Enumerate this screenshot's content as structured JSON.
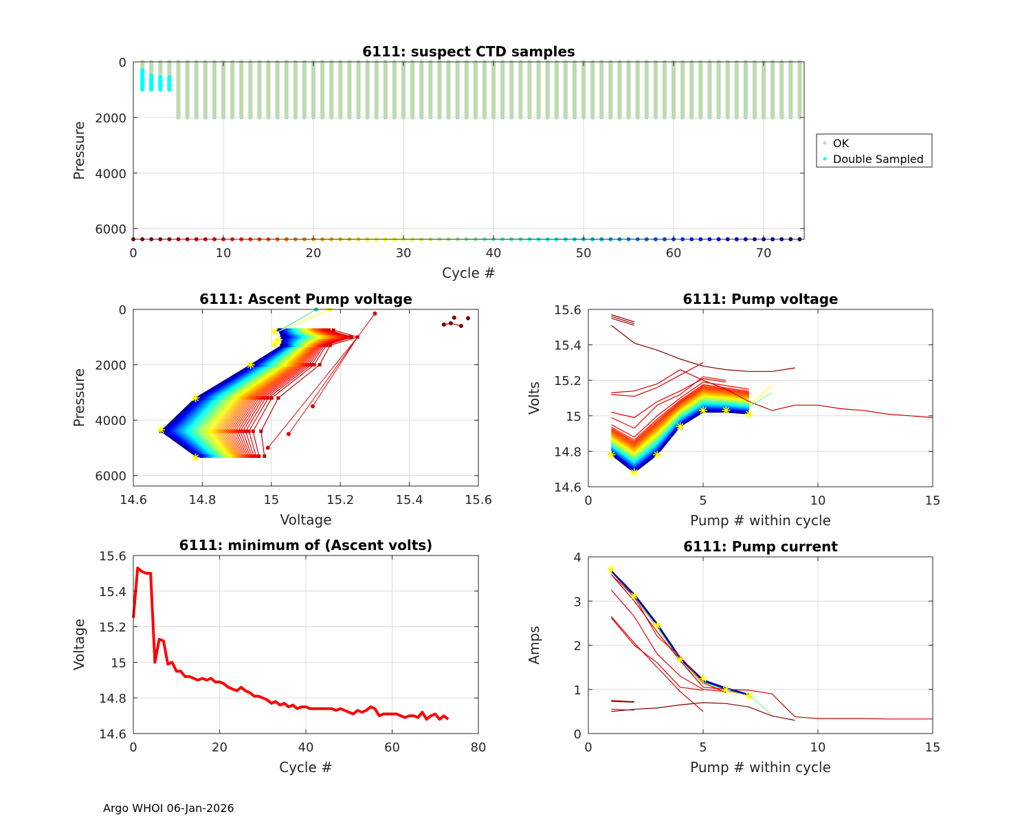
{
  "footer": "Argo WHOI 06-Jan-2026",
  "chart_data": [
    {
      "id": "suspect",
      "type": "scatter",
      "title": "6111: suspect CTD samples",
      "xlabel": "Cycle #",
      "ylabel": "Pressure",
      "xlim": [
        0,
        74.5
      ],
      "ylim": [
        6380,
        0
      ],
      "xticks": [
        0,
        10,
        20,
        30,
        40,
        50,
        60,
        70
      ],
      "yticks": [
        0,
        2000,
        4000,
        6000
      ],
      "grid": true,
      "legend": {
        "placement": "outside-right",
        "entries": [
          {
            "label": "OK",
            "color": "#bcdbb0"
          },
          {
            "label": "Double Sampled",
            "color": "#00ffff"
          }
        ]
      },
      "ok_profiles": {
        "cycles_first": 1,
        "cycles_last": 74,
        "early_cycles": [
          1,
          2,
          3,
          4
        ],
        "early_max_pressure": 1000,
        "max_pressure": 2000
      },
      "double_sampled": [
        {
          "cycle": 1,
          "pmin": 300,
          "pmax": 1000
        },
        {
          "cycle": 2,
          "pmin": 500,
          "pmax": 1000
        },
        {
          "cycle": 3,
          "pmin": 550,
          "pmax": 1000
        },
        {
          "cycle": 4,
          "pmin": 550,
          "pmax": 1000
        }
      ],
      "cycle_markers": {
        "first": 0,
        "last": 74,
        "pressure": 6380
      }
    },
    {
      "id": "ascent",
      "type": "line",
      "title": "6111: Ascent Pump voltage",
      "xlabel": "Voltage",
      "ylabel": "Pressure",
      "xlim": [
        14.6,
        15.6
      ],
      "ylim": [
        6380,
        0
      ],
      "xticks": [
        14.6,
        14.8,
        15.0,
        15.2,
        15.4,
        15.6
      ],
      "xticklabels": [
        "14.6",
        "14.8",
        "15",
        "15.2",
        "15.4",
        "15.6"
      ],
      "yticks": [
        0,
        2000,
        4000,
        6000
      ],
      "grid": true,
      "pressures": [
        750,
        1000,
        1300,
        2000,
        3200,
        4400,
        5300
      ],
      "late_profile_volts": [
        15.02,
        15.03,
        15.03,
        14.94,
        14.78,
        14.68,
        14.78
      ],
      "early_profile_volts": [
        15.18,
        15.25,
        15.17,
        15.14,
        15.02,
        14.97,
        14.98
      ],
      "cycles": [
        5,
        73
      ],
      "outliers": [
        {
          "volts": 15.3,
          "pressure": 150
        },
        {
          "volts": 15.17,
          "pressure": 0
        },
        {
          "volts": 15.13,
          "pressure": 0
        },
        {
          "volts": 15.12,
          "pressure": 3500
        },
        {
          "volts": 15.05,
          "pressure": 4500
        },
        {
          "volts": 14.99,
          "pressure": 5000
        }
      ],
      "first_cycles_points": [
        {
          "volts": 15.5,
          "pressure": 550
        },
        {
          "volts": 15.52,
          "pressure": 500
        },
        {
          "volts": 15.55,
          "pressure": 600
        },
        {
          "volts": 15.53,
          "pressure": 300
        },
        {
          "volts": 15.57,
          "pressure": 320
        }
      ],
      "latest_markers": [
        {
          "volts": 15.01,
          "pressure": 800
        },
        {
          "volts": 15.02,
          "pressure": 1100
        },
        {
          "volts": 15.01,
          "pressure": 1250
        },
        {
          "volts": 14.94,
          "pressure": 2000
        },
        {
          "volts": 14.78,
          "pressure": 3200
        },
        {
          "volts": 14.68,
          "pressure": 4350
        },
        {
          "volts": 14.78,
          "pressure": 5350
        }
      ]
    },
    {
      "id": "pumpv",
      "type": "line",
      "title": "6111: Pump voltage",
      "xlabel": "Pump # within cycle",
      "ylabel": "Volts",
      "xlim": [
        0,
        15
      ],
      "ylim": [
        14.6,
        15.6
      ],
      "xticks": [
        0,
        5,
        10,
        15
      ],
      "yticks": [
        14.6,
        14.8,
        15.0,
        15.2,
        15.4,
        15.6
      ],
      "yticklabels": [
        "14.6",
        "14.8",
        "15",
        "15.2",
        "15.4",
        "15.6"
      ],
      "grid": true,
      "pumps": [
        1,
        2,
        3,
        4,
        5,
        6,
        7
      ],
      "late_profile": [
        14.78,
        14.68,
        14.78,
        14.94,
        15.02,
        15.02,
        15.01
      ],
      "early_profile": [
        14.95,
        14.88,
        15.0,
        15.1,
        15.19,
        15.17,
        15.15
      ],
      "cycles": [
        10,
        73
      ],
      "outlier_lines": [
        {
          "cycle": 0,
          "x": [
            1,
            2,
            3,
            4,
            5,
            6,
            7,
            8,
            9
          ],
          "y": [
            15.51,
            15.41,
            15.37,
            15.32,
            15.28,
            15.26,
            15.25,
            15.25,
            15.27
          ]
        },
        {
          "cycle": 1,
          "x": [
            1,
            2
          ],
          "y": [
            15.57,
            15.53
          ]
        },
        {
          "cycle": 2,
          "x": [
            1,
            2
          ],
          "y": [
            15.56,
            15.52
          ]
        },
        {
          "cycle": 3,
          "x": [
            1,
            2
          ],
          "y": [
            15.55,
            15.51
          ]
        },
        {
          "cycle": 5,
          "x": [
            1,
            2,
            3,
            4,
            5,
            6,
            7,
            8,
            9,
            10,
            11,
            12,
            13,
            14,
            15
          ],
          "y": [
            15.13,
            15.14,
            15.18,
            15.26,
            15.2,
            15.15,
            15.08,
            15.03,
            15.06,
            15.06,
            15.04,
            15.03,
            15.01,
            15.0,
            14.99
          ]
        },
        {
          "cycle": 6,
          "x": [
            1,
            2,
            3,
            4,
            5
          ],
          "y": [
            15.12,
            15.11,
            15.16,
            15.23,
            15.3
          ]
        },
        {
          "cycle": 7,
          "x": [
            1,
            2,
            3,
            4,
            5,
            6
          ],
          "y": [
            15.02,
            14.99,
            15.08,
            15.14,
            15.21,
            15.19
          ]
        },
        {
          "cycle": 8,
          "x": [
            1,
            2,
            3,
            4,
            5,
            6
          ],
          "y": [
            14.99,
            14.93,
            15.06,
            15.12,
            15.22,
            15.2
          ]
        },
        {
          "cycle": 28,
          "x": [
            7,
            8
          ],
          "y": [
            15.06,
            15.17
          ]
        },
        {
          "cycle": 38,
          "x": [
            7,
            8
          ],
          "y": [
            15.05,
            15.13
          ]
        }
      ],
      "latest_markers": {
        "x": [
          1,
          2,
          3,
          4,
          5,
          6,
          7
        ],
        "y": [
          14.78,
          14.68,
          14.78,
          14.94,
          15.03,
          15.03,
          15.01
        ]
      }
    },
    {
      "id": "minv",
      "type": "line",
      "title": "6111: minimum of (Ascent volts)",
      "xlabel": "Cycle #",
      "ylabel": "Voltage",
      "xlim": [
        0,
        80
      ],
      "ylim": [
        14.6,
        15.6
      ],
      "xticks": [
        0,
        20,
        40,
        60,
        80
      ],
      "yticks": [
        14.6,
        14.8,
        15.0,
        15.2,
        15.4,
        15.6
      ],
      "yticklabels": [
        "14.6",
        "14.8",
        "15",
        "15.2",
        "15.4",
        "15.6"
      ],
      "grid": true,
      "color": "#ff0000",
      "x": [
        0,
        1,
        2,
        3,
        4,
        5,
        6,
        7,
        8,
        9,
        10,
        11,
        12,
        13,
        14,
        15,
        16,
        17,
        18,
        19,
        20,
        21,
        22,
        23,
        24,
        25,
        26,
        27,
        28,
        29,
        30,
        31,
        32,
        33,
        34,
        35,
        36,
        37,
        38,
        39,
        40,
        41,
        42,
        43,
        44,
        45,
        46,
        47,
        48,
        49,
        50,
        51,
        52,
        53,
        54,
        55,
        56,
        57,
        58,
        59,
        60,
        61,
        62,
        63,
        64,
        65,
        66,
        67,
        68,
        69,
        70,
        71,
        72,
        73
      ],
      "values": [
        15.25,
        15.53,
        15.51,
        15.5,
        15.5,
        15.0,
        15.13,
        15.12,
        14.99,
        15.0,
        14.95,
        14.95,
        14.92,
        14.92,
        14.91,
        14.9,
        14.91,
        14.9,
        14.91,
        14.89,
        14.89,
        14.88,
        14.86,
        14.85,
        14.84,
        14.86,
        14.84,
        14.83,
        14.81,
        14.81,
        14.8,
        14.79,
        14.77,
        14.78,
        14.76,
        14.77,
        14.75,
        14.76,
        14.74,
        14.75,
        14.75,
        14.74,
        14.74,
        14.74,
        14.74,
        14.74,
        14.74,
        14.73,
        14.74,
        14.73,
        14.72,
        14.71,
        14.73,
        14.72,
        14.73,
        14.75,
        14.74,
        14.7,
        14.71,
        14.71,
        14.71,
        14.71,
        14.7,
        14.69,
        14.7,
        14.7,
        14.69,
        14.72,
        14.68,
        14.7,
        14.71,
        14.68,
        14.7,
        14.68
      ]
    },
    {
      "id": "pumpc",
      "type": "line",
      "title": "6111: Pump current",
      "xlabel": "Pump # within cycle",
      "ylabel": "Amps",
      "xlim": [
        0,
        15
      ],
      "ylim": [
        0,
        4
      ],
      "xticks": [
        0,
        5,
        10,
        15
      ],
      "yticks": [
        0,
        1,
        2,
        3,
        4
      ],
      "grid": true,
      "pumps": [
        1,
        2,
        3,
        4,
        5,
        6,
        7
      ],
      "main_profile": [
        3.68,
        3.12,
        2.45,
        1.68,
        1.18,
        1.0,
        0.88
      ],
      "cycles": [
        10,
        73
      ],
      "outlier_lines": [
        {
          "cycle": 0,
          "x": [
            1,
            2,
            3,
            4,
            5,
            6,
            7,
            8,
            9
          ],
          "y": [
            0.5,
            0.55,
            0.58,
            0.65,
            0.7,
            0.68,
            0.6,
            0.4,
            0.3
          ]
        },
        {
          "cycle": 1,
          "x": [
            1,
            2
          ],
          "y": [
            0.73,
            0.71
          ]
        },
        {
          "cycle": 2,
          "x": [
            1,
            2
          ],
          "y": [
            0.75,
            0.72
          ]
        },
        {
          "cycle": 3,
          "x": [
            1,
            2
          ],
          "y": [
            0.55,
            0.53
          ]
        },
        {
          "cycle": 5,
          "x": [
            1,
            2,
            3,
            4,
            5,
            6,
            7,
            8,
            9,
            10,
            11,
            12,
            13,
            14,
            15
          ],
          "y": [
            3.6,
            3.0,
            2.3,
            1.65,
            1.05,
            1.0,
            0.98,
            0.9,
            0.38,
            0.34,
            0.34,
            0.34,
            0.33,
            0.33,
            0.33
          ]
        },
        {
          "cycle": 6,
          "x": [
            1,
            2,
            3,
            4,
            5
          ],
          "y": [
            2.65,
            2.05,
            1.5,
            0.95,
            0.5
          ]
        },
        {
          "cycle": 7,
          "x": [
            1,
            2,
            3,
            4,
            5
          ],
          "y": [
            2.62,
            2.0,
            1.6,
            1.05,
            0.98
          ]
        },
        {
          "cycle": 8,
          "x": [
            1,
            2,
            3,
            4,
            5,
            6
          ],
          "y": [
            3.25,
            2.65,
            1.8,
            1.3,
            1.0,
            0.95
          ]
        },
        {
          "cycle": 9,
          "x": [
            1,
            2,
            3,
            4,
            5,
            6
          ],
          "y": [
            3.6,
            3.1,
            2.2,
            1.75,
            1.15,
            0.92
          ]
        },
        {
          "cycle": 38,
          "x": [
            7,
            8
          ],
          "y": [
            0.88,
            0.42
          ]
        }
      ],
      "latest_markers": {
        "x": [
          1,
          2,
          3,
          4,
          5,
          6,
          7
        ],
        "y": [
          3.72,
          3.12,
          2.45,
          1.68,
          1.24,
          0.99,
          0.85
        ]
      }
    }
  ]
}
